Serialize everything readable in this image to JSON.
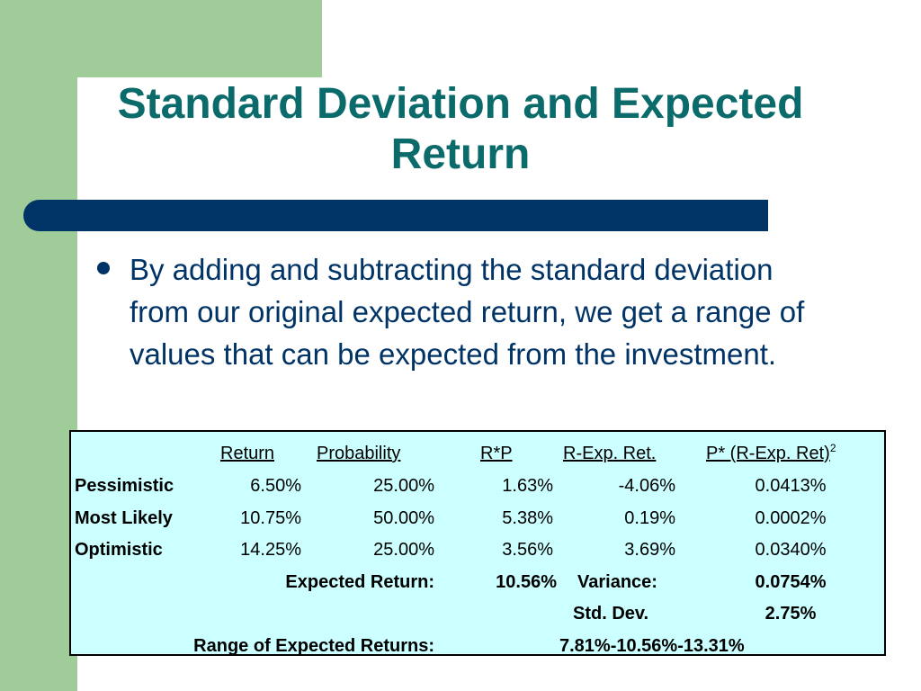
{
  "title": {
    "line1": "Standard Deviation and Expected",
    "line2": "Return"
  },
  "bullet": "By adding and subtracting the standard deviation from our original expected return, we get a range of values that can be expected from the investment.",
  "table": {
    "headers": {
      "return": "Return",
      "probability": "Probability",
      "rp": "R*P",
      "rexp": "R-Exp. Ret.",
      "psq": "P* (R-Exp. Ret)",
      "psq_sup": "2"
    },
    "rows": [
      {
        "label": "Pessimistic",
        "return": "6.50%",
        "probability": "25.00%",
        "rp": "1.63%",
        "rexp": "-4.06%",
        "psq": "0.0413%"
      },
      {
        "label": "Most Likely",
        "return": "10.75%",
        "probability": "50.00%",
        "rp": "5.38%",
        "rexp": "0.19%",
        "psq": "0.0002%"
      },
      {
        "label": "Optimistic",
        "return": "14.25%",
        "probability": "25.00%",
        "rp": "3.56%",
        "rexp": "3.69%",
        "psq": "0.0340%"
      }
    ],
    "expected_return_label": "Expected Return:",
    "expected_return_value": "10.56%",
    "variance_label": "Variance:",
    "variance_value": "0.0754%",
    "std_dev_label": "Std. Dev.",
    "std_dev_value": "2.75%",
    "range_label": "Range of Expected Returns:",
    "range_value": "7.81%-10.56%-13.31%"
  }
}
